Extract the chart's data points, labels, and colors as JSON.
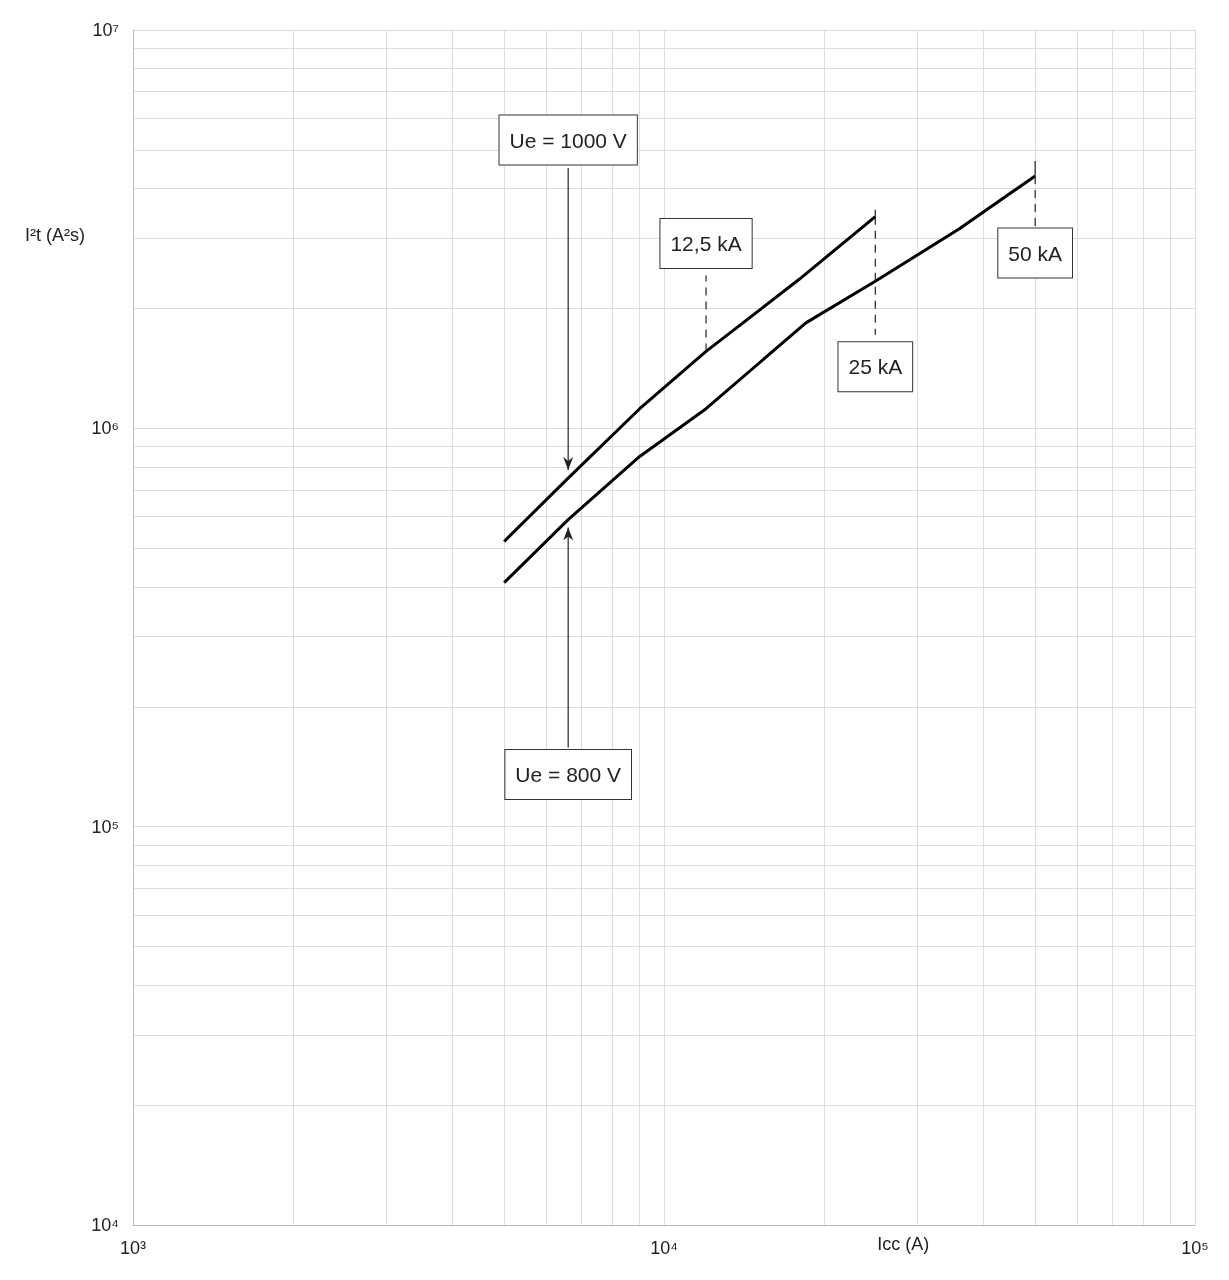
{
  "chart_data": {
    "type": "line",
    "xlabel": "Icc (A)",
    "ylabel": "I²t (A²s)",
    "log": "xy",
    "grid": true,
    "marker": "none",
    "line_style": "solid",
    "xlim": [
      1000,
      100000
    ],
    "ylim": [
      10000,
      10000000
    ],
    "xticks": [
      {
        "value": 1000,
        "label": "10³"
      },
      {
        "value": 2000,
        "label": null
      },
      {
        "value": 3000,
        "label": null
      },
      {
        "value": 4000,
        "label": null
      },
      {
        "value": 5000,
        "label": null
      },
      {
        "value": 6000,
        "label": null
      },
      {
        "value": 7000,
        "label": null
      },
      {
        "value": 8000,
        "label": null
      },
      {
        "value": 9000,
        "label": null
      },
      {
        "value": 10000,
        "label": "10⁴"
      },
      {
        "value": 20000,
        "label": null
      },
      {
        "value": 30000,
        "label": null
      },
      {
        "value": 40000,
        "label": null
      },
      {
        "value": 50000,
        "label": null
      },
      {
        "value": 60000,
        "label": null
      },
      {
        "value": 70000,
        "label": null
      },
      {
        "value": 80000,
        "label": null
      },
      {
        "value": 90000,
        "label": null
      },
      {
        "value": 100000,
        "label": "10⁵"
      }
    ],
    "yticks": [
      {
        "value": 10000,
        "label": "10⁴"
      },
      {
        "value": 20000,
        "label": null
      },
      {
        "value": 30000,
        "label": null
      },
      {
        "value": 40000,
        "label": null
      },
      {
        "value": 50000,
        "label": null
      },
      {
        "value": 60000,
        "label": null
      },
      {
        "value": 70000,
        "label": null
      },
      {
        "value": 80000,
        "label": null
      },
      {
        "value": 90000,
        "label": null
      },
      {
        "value": 100000,
        "label": "10⁵"
      },
      {
        "value": 200000,
        "label": null
      },
      {
        "value": 300000,
        "label": null
      },
      {
        "value": 400000,
        "label": null
      },
      {
        "value": 500000,
        "label": null
      },
      {
        "value": 600000,
        "label": null
      },
      {
        "value": 700000,
        "label": null
      },
      {
        "value": 800000,
        "label": null
      },
      {
        "value": 900000,
        "label": null
      },
      {
        "value": 1000000,
        "label": "10⁶"
      },
      {
        "value": 2000000,
        "label": null
      },
      {
        "value": 3000000,
        "label": null
      },
      {
        "value": 4000000,
        "label": null
      },
      {
        "value": 5000000,
        "label": null
      },
      {
        "value": 6000000,
        "label": null
      },
      {
        "value": 7000000,
        "label": null
      },
      {
        "value": 8000000,
        "label": null
      },
      {
        "value": 9000000,
        "label": null
      },
      {
        "value": 10000000,
        "label": "10⁷"
      }
    ],
    "series": [
      {
        "color": "#000000",
        "x": [
          5000,
          6600,
          9000,
          12000,
          18000,
          25000
        ],
        "values": [
          520000,
          750000,
          1120000,
          1560000,
          2370000,
          3400000
        ]
      },
      {
        "color": "#000000",
        "x": [
          5000,
          6600,
          9000,
          12000,
          18500,
          25000,
          36000,
          50000
        ],
        "values": [
          410000,
          590000,
          850000,
          1120000,
          1840000,
          2340000,
          3170000,
          4300000
        ]
      }
    ],
    "annotations": [
      {
        "text": "Ue = 1000 V",
        "x": 6600,
        "y": 750000
      },
      {
        "text": "Ue = 800 V",
        "x": 6600,
        "y": 590000
      },
      {
        "text": "12,5 kA",
        "x": 12000,
        "y": 1560000
      },
      {
        "text": "25 kA",
        "x": 25000,
        "y": 3400000
      },
      {
        "text": "50 kA",
        "x": 50000,
        "y": 4300000
      }
    ]
  }
}
